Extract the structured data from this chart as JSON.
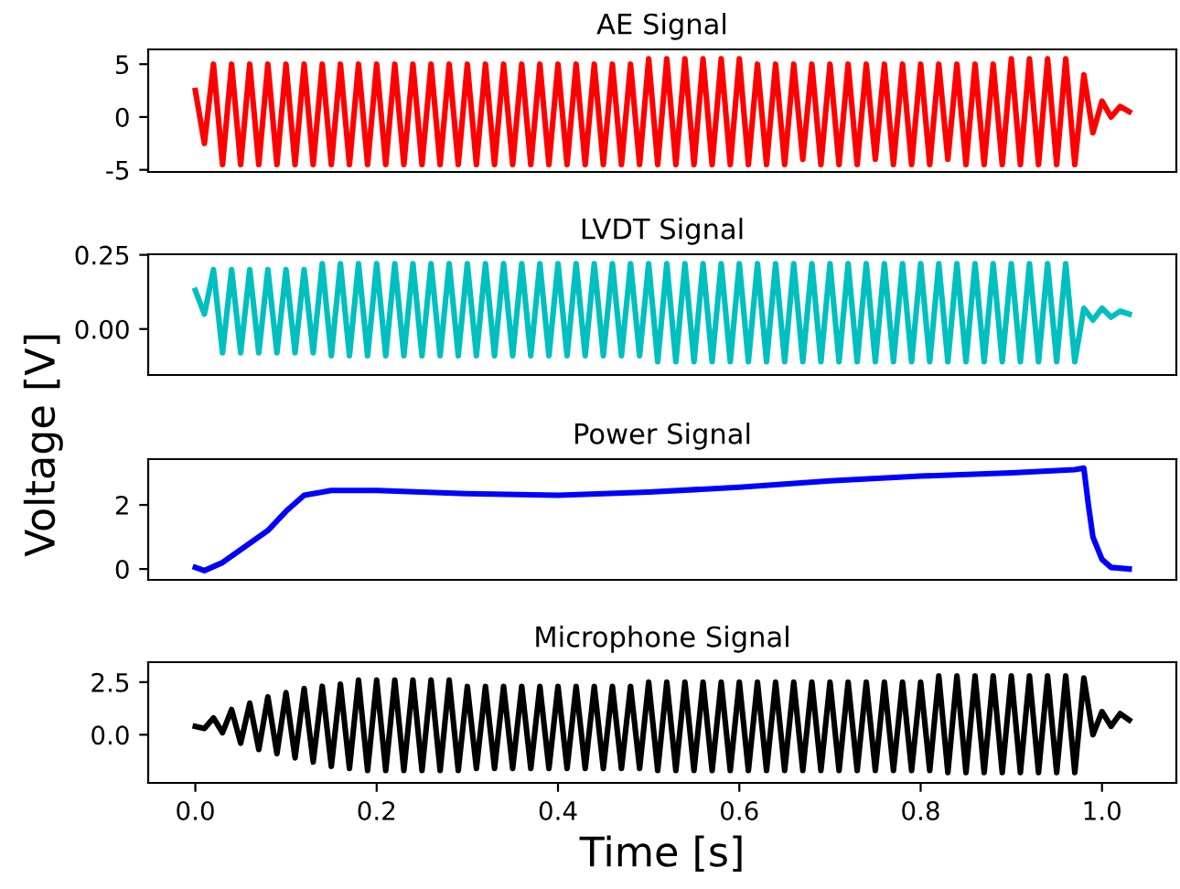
{
  "chart_data": [
    {
      "type": "line",
      "title": "AE Signal",
      "xlim": [
        -0.052,
        1.082
      ],
      "ylim": [
        -5.2,
        6.4
      ],
      "yticks": [
        -5,
        0,
        5
      ],
      "tick_labels": "y",
      "x": [
        0,
        0.01,
        0.02,
        0.03,
        0.04,
        0.05,
        0.06,
        0.07,
        0.08,
        0.09,
        0.1,
        0.11,
        0.12,
        0.13,
        0.14,
        0.15,
        0.16,
        0.17,
        0.18,
        0.19,
        0.2,
        0.21,
        0.22,
        0.23,
        0.24,
        0.25,
        0.26,
        0.27,
        0.28,
        0.29,
        0.3,
        0.31,
        0.32,
        0.33,
        0.34,
        0.35,
        0.36,
        0.37,
        0.38,
        0.39,
        0.4,
        0.41,
        0.42,
        0.43,
        0.44,
        0.45,
        0.46,
        0.47,
        0.48,
        0.49,
        0.5,
        0.51,
        0.52,
        0.53,
        0.54,
        0.55,
        0.56,
        0.57,
        0.58,
        0.59,
        0.6,
        0.61,
        0.62,
        0.63,
        0.64,
        0.65,
        0.66,
        0.67,
        0.68,
        0.69,
        0.7,
        0.71,
        0.72,
        0.73,
        0.74,
        0.75,
        0.76,
        0.77,
        0.78,
        0.79,
        0.8,
        0.81,
        0.82,
        0.83,
        0.84,
        0.85,
        0.86,
        0.87,
        0.88,
        0.89,
        0.9,
        0.91,
        0.92,
        0.93,
        0.94,
        0.95,
        0.96,
        0.97,
        0.98,
        0.99,
        1.0,
        1.01,
        1.02,
        1.03
      ],
      "series": [
        {
          "color": "#ff0000",
          "values": [
            2.5,
            -2.5,
            5,
            -4.5,
            5,
            -4.5,
            5,
            -4.5,
            5,
            -4.5,
            5,
            -4.5,
            5,
            -4.5,
            5,
            -4.5,
            5,
            -4.5,
            5,
            -4.5,
            5,
            -4.5,
            5,
            -4.5,
            5,
            -4.5,
            5,
            -4.5,
            5,
            -4.5,
            5,
            -4.5,
            5,
            -4.5,
            5,
            -4.5,
            5,
            -4.5,
            5,
            -4.5,
            5,
            -4.5,
            5,
            -4.5,
            5,
            -4.5,
            5,
            -4.5,
            5,
            -4.5,
            5.5,
            -4.5,
            5.5,
            -4.5,
            5.5,
            -4.5,
            5.5,
            -4.5,
            5.5,
            -4.5,
            5.5,
            -4.5,
            5,
            -4.5,
            5,
            -4.5,
            5,
            -4,
            5,
            -4.5,
            5,
            -4.5,
            5,
            -4.5,
            5,
            -4,
            5,
            -4.5,
            5,
            -4.5,
            5,
            -4.5,
            5,
            -4,
            5,
            -4.5,
            5,
            -4.5,
            5,
            -4.5,
            5.5,
            -4.5,
            5.5,
            -4.5,
            5.5,
            -4.5,
            5.5,
            -4.5,
            4,
            -1.5,
            1.5,
            0,
            1,
            0.5
          ]
        }
      ]
    },
    {
      "type": "line",
      "title": "LVDT Signal",
      "ylabel": "Voltage [V]",
      "xlim": [
        -0.052,
        1.082
      ],
      "ylim": [
        -0.155,
        0.252
      ],
      "yticks": [
        {
          "value": 0,
          "label": "0.00"
        },
        {
          "value": 0.25,
          "label": "0.25"
        }
      ],
      "tick_labels": "y",
      "x": [
        0,
        0.01,
        0.02,
        0.03,
        0.04,
        0.05,
        0.06,
        0.07,
        0.08,
        0.09,
        0.1,
        0.11,
        0.12,
        0.13,
        0.14,
        0.15,
        0.16,
        0.17,
        0.18,
        0.19,
        0.2,
        0.21,
        0.22,
        0.23,
        0.24,
        0.25,
        0.26,
        0.27,
        0.28,
        0.29,
        0.3,
        0.31,
        0.32,
        0.33,
        0.34,
        0.35,
        0.36,
        0.37,
        0.38,
        0.39,
        0.4,
        0.41,
        0.42,
        0.43,
        0.44,
        0.45,
        0.46,
        0.47,
        0.48,
        0.49,
        0.5,
        0.51,
        0.52,
        0.53,
        0.54,
        0.55,
        0.56,
        0.57,
        0.58,
        0.59,
        0.6,
        0.61,
        0.62,
        0.63,
        0.64,
        0.65,
        0.66,
        0.67,
        0.68,
        0.69,
        0.7,
        0.71,
        0.72,
        0.73,
        0.74,
        0.75,
        0.76,
        0.77,
        0.78,
        0.79,
        0.8,
        0.81,
        0.82,
        0.83,
        0.84,
        0.85,
        0.86,
        0.87,
        0.88,
        0.89,
        0.9,
        0.91,
        0.92,
        0.93,
        0.94,
        0.95,
        0.96,
        0.97,
        0.98,
        0.99,
        1.0,
        1.01,
        1.02,
        1.03
      ],
      "series": [
        {
          "color": "#00bfbf",
          "values": [
            0.13,
            0.05,
            0.2,
            -0.08,
            0.2,
            -0.08,
            0.2,
            -0.08,
            0.2,
            -0.08,
            0.2,
            -0.08,
            0.2,
            -0.08,
            0.22,
            -0.09,
            0.22,
            -0.09,
            0.22,
            -0.09,
            0.22,
            -0.09,
            0.22,
            -0.09,
            0.22,
            -0.09,
            0.22,
            -0.09,
            0.22,
            -0.09,
            0.22,
            -0.09,
            0.22,
            -0.09,
            0.22,
            -0.09,
            0.22,
            -0.09,
            0.22,
            -0.09,
            0.22,
            -0.09,
            0.22,
            -0.09,
            0.22,
            -0.09,
            0.22,
            -0.09,
            0.22,
            -0.09,
            0.22,
            -0.11,
            0.22,
            -0.11,
            0.22,
            -0.11,
            0.22,
            -0.11,
            0.22,
            -0.11,
            0.22,
            -0.11,
            0.22,
            -0.11,
            0.22,
            -0.11,
            0.22,
            -0.11,
            0.22,
            -0.11,
            0.22,
            -0.11,
            0.22,
            -0.11,
            0.22,
            -0.11,
            0.22,
            -0.11,
            0.22,
            -0.11,
            0.22,
            -0.11,
            0.22,
            -0.11,
            0.22,
            -0.11,
            0.22,
            -0.11,
            0.22,
            -0.11,
            0.22,
            -0.11,
            0.22,
            -0.11,
            0.22,
            -0.11,
            0.22,
            -0.11,
            0.07,
            0.03,
            0.07,
            0.04,
            0.06,
            0.05
          ]
        }
      ]
    },
    {
      "type": "line",
      "title": "Power Signal",
      "xlim": [
        -0.052,
        1.082
      ],
      "ylim": [
        -0.34,
        3.43
      ],
      "yticks": [
        0,
        2
      ],
      "tick_labels": "y",
      "x": [
        0,
        0.01,
        0.03,
        0.05,
        0.08,
        0.1,
        0.12,
        0.15,
        0.2,
        0.3,
        0.4,
        0.5,
        0.6,
        0.7,
        0.8,
        0.9,
        0.97,
        0.98,
        0.985,
        0.99,
        1.0,
        1.01,
        1.03
      ],
      "series": [
        {
          "color": "#0000ff",
          "values": [
            0.05,
            -0.05,
            0.2,
            0.6,
            1.2,
            1.8,
            2.3,
            2.45,
            2.45,
            2.35,
            2.3,
            2.4,
            2.55,
            2.75,
            2.9,
            3.0,
            3.1,
            3.15,
            2.0,
            1.0,
            0.3,
            0.05,
            0.0
          ]
        }
      ]
    },
    {
      "type": "line",
      "title": "Microphone Signal",
      "xlabel": "Time [s]",
      "xlim": [
        -0.052,
        1.082
      ],
      "xticks": [
        {
          "value": 0,
          "label": "0.0"
        },
        {
          "value": 0.2,
          "label": "0.2"
        },
        {
          "value": 0.4,
          "label": "0.4"
        },
        {
          "value": 0.6,
          "label": "0.6"
        },
        {
          "value": 0.8,
          "label": "0.8"
        },
        {
          "value": 1.0,
          "label": "1.0"
        }
      ],
      "ylim": [
        -2.29,
        3.45
      ],
      "yticks": [
        {
          "value": 0,
          "label": "0.0"
        },
        {
          "value": 2.5,
          "label": "2.5"
        }
      ],
      "x": [
        0,
        0.01,
        0.02,
        0.03,
        0.04,
        0.05,
        0.06,
        0.07,
        0.08,
        0.09,
        0.1,
        0.11,
        0.12,
        0.13,
        0.14,
        0.15,
        0.16,
        0.17,
        0.18,
        0.19,
        0.2,
        0.21,
        0.22,
        0.23,
        0.24,
        0.25,
        0.26,
        0.27,
        0.28,
        0.29,
        0.3,
        0.31,
        0.32,
        0.33,
        0.34,
        0.35,
        0.36,
        0.37,
        0.38,
        0.39,
        0.4,
        0.41,
        0.42,
        0.43,
        0.44,
        0.45,
        0.46,
        0.47,
        0.48,
        0.49,
        0.5,
        0.51,
        0.52,
        0.53,
        0.54,
        0.55,
        0.56,
        0.57,
        0.58,
        0.59,
        0.6,
        0.61,
        0.62,
        0.63,
        0.64,
        0.65,
        0.66,
        0.67,
        0.68,
        0.69,
        0.7,
        0.71,
        0.72,
        0.73,
        0.74,
        0.75,
        0.76,
        0.77,
        0.78,
        0.79,
        0.8,
        0.81,
        0.82,
        0.83,
        0.84,
        0.85,
        0.86,
        0.87,
        0.88,
        0.89,
        0.9,
        0.91,
        0.92,
        0.93,
        0.94,
        0.95,
        0.96,
        0.97,
        0.98,
        0.99,
        1.0,
        1.01,
        1.02,
        1.03
      ],
      "series": [
        {
          "color": "#000000",
          "values": [
            0.4,
            0.3,
            0.8,
            0.1,
            1.2,
            -0.4,
            1.5,
            -0.7,
            1.8,
            -0.9,
            2.0,
            -1.1,
            2.2,
            -1.3,
            2.3,
            -1.5,
            2.4,
            -1.6,
            2.6,
            -1.7,
            2.6,
            -1.7,
            2.6,
            -1.7,
            2.6,
            -1.7,
            2.6,
            -1.7,
            2.6,
            -1.7,
            2.3,
            -1.6,
            2.3,
            -1.6,
            2.3,
            -1.6,
            2.3,
            -1.6,
            2.3,
            -1.6,
            2.3,
            -1.6,
            2.3,
            -1.6,
            2.3,
            -1.6,
            2.3,
            -1.6,
            2.3,
            -1.6,
            2.5,
            -1.7,
            2.5,
            -1.7,
            2.5,
            -1.7,
            2.5,
            -1.7,
            2.5,
            -1.7,
            2.5,
            -1.7,
            2.5,
            -1.7,
            2.5,
            -1.7,
            2.5,
            -1.7,
            2.5,
            -1.7,
            2.5,
            -1.7,
            2.5,
            -1.7,
            2.5,
            -1.7,
            2.5,
            -1.7,
            2.5,
            -1.7,
            2.5,
            -1.7,
            2.8,
            -1.8,
            2.8,
            -1.8,
            2.8,
            -1.8,
            2.8,
            -1.8,
            2.8,
            -1.8,
            2.8,
            -1.8,
            2.8,
            -1.8,
            2.8,
            -1.8,
            2.7,
            0,
            1.1,
            0.4,
            1.0,
            0.7
          ]
        }
      ]
    }
  ]
}
